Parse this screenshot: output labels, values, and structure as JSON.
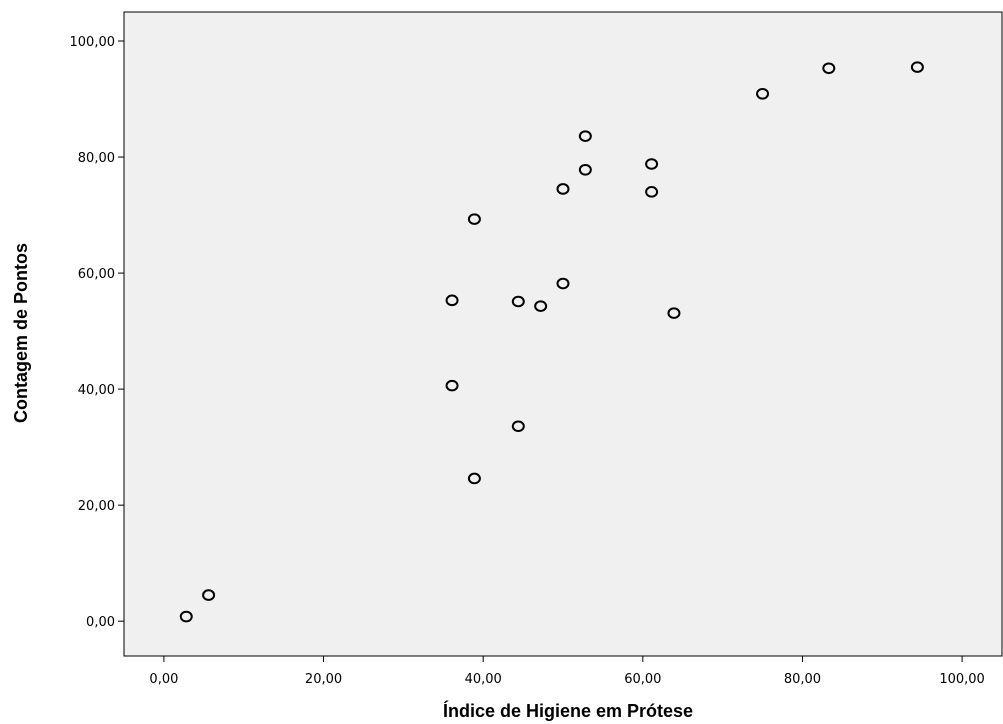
{
  "chart_data": {
    "type": "scatter",
    "title": "",
    "xlabel": "Índice de Higiene em Prótese",
    "ylabel": "Contagem de Pontos",
    "xlim": [
      -5,
      105
    ],
    "ylim": [
      -6,
      105
    ],
    "x_ticks": [
      0,
      20,
      40,
      60,
      80,
      100
    ],
    "x_tick_labels": [
      "0,00",
      "20,00",
      "40,00",
      "60,00",
      "80,00",
      "100,00"
    ],
    "y_ticks": [
      0,
      20,
      40,
      60,
      80,
      100
    ],
    "y_tick_labels": [
      "0,00",
      "20,00",
      "40,00",
      "60,00",
      "80,00",
      "100,00"
    ],
    "grid": false,
    "legend": "none",
    "colors": {
      "plot_background": "#f0f0f0",
      "marker_stroke": "#000000",
      "axis": "#000000"
    },
    "series": [
      {
        "points": [
          {
            "x": 2.8,
            "y": 0.8
          },
          {
            "x": 5.6,
            "y": 4.5
          },
          {
            "x": 36.1,
            "y": 55.3
          },
          {
            "x": 36.1,
            "y": 40.6
          },
          {
            "x": 38.9,
            "y": 69.3
          },
          {
            "x": 38.9,
            "y": 24.6
          },
          {
            "x": 44.4,
            "y": 55.1
          },
          {
            "x": 44.4,
            "y": 33.6
          },
          {
            "x": 47.2,
            "y": 54.3
          },
          {
            "x": 50.0,
            "y": 74.5
          },
          {
            "x": 50.0,
            "y": 58.2
          },
          {
            "x": 52.8,
            "y": 83.6
          },
          {
            "x": 52.8,
            "y": 77.8
          },
          {
            "x": 61.1,
            "y": 78.8
          },
          {
            "x": 61.1,
            "y": 74.0
          },
          {
            "x": 63.9,
            "y": 53.1
          },
          {
            "x": 75.0,
            "y": 90.9
          },
          {
            "x": 83.3,
            "y": 95.3
          },
          {
            "x": 94.4,
            "y": 95.5
          }
        ]
      }
    ]
  }
}
